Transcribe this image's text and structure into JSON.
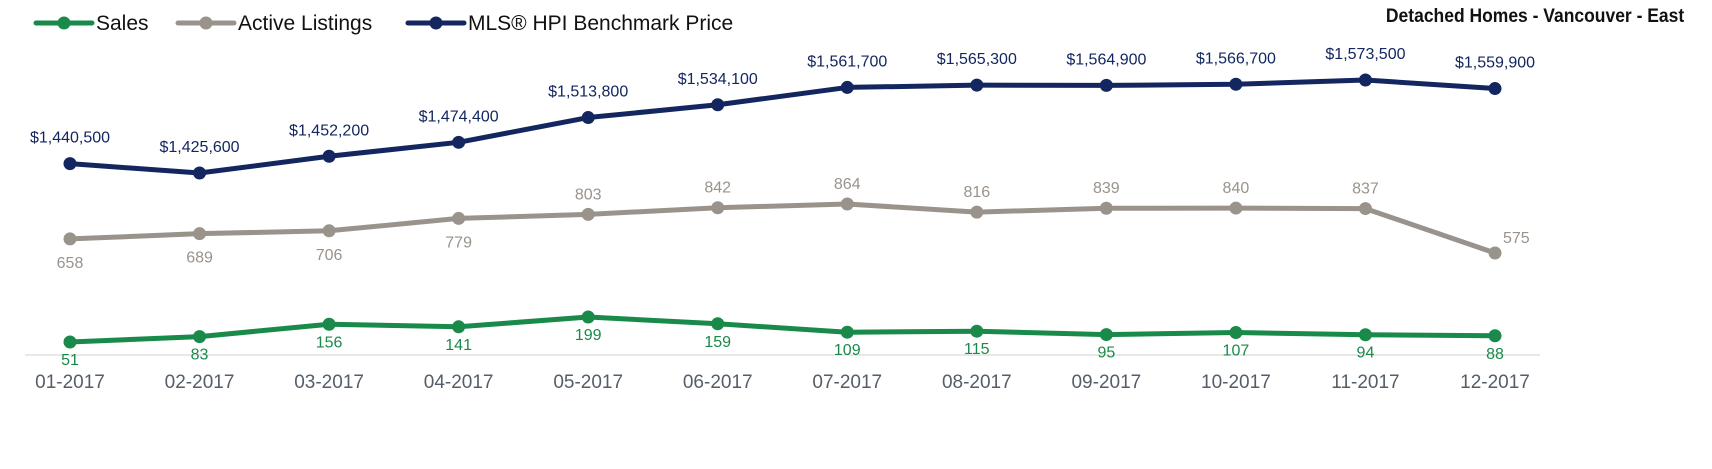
{
  "chart_data": {
    "type": "line",
    "title": "Detached Homes - Vancouver - East",
    "categories": [
      "01-2017",
      "02-2017",
      "03-2017",
      "04-2017",
      "05-2017",
      "06-2017",
      "07-2017",
      "08-2017",
      "09-2017",
      "10-2017",
      "11-2017",
      "12-2017"
    ],
    "legend_position": "top-left",
    "grid": false,
    "series": [
      {
        "name": "Sales",
        "color": "#1a8a4a",
        "values": [
          51,
          83,
          156,
          141,
          199,
          159,
          109,
          115,
          95,
          107,
          94,
          88
        ],
        "labels": [
          "51",
          "83",
          "156",
          "141",
          "199",
          "159",
          "109",
          "115",
          "95",
          "107",
          "94",
          "88"
        ]
      },
      {
        "name": "Active Listings",
        "color": "#9a938b",
        "values": [
          658,
          689,
          706,
          779,
          803,
          842,
          864,
          816,
          839,
          840,
          837,
          575
        ],
        "labels": [
          "658",
          "689",
          "706",
          "779",
          "803",
          "842",
          "864",
          "816",
          "839",
          "840",
          "837",
          "575"
        ]
      },
      {
        "name": "MLS® HPI Benchmark Price",
        "color": "#132660",
        "values": [
          1440500,
          1425600,
          1452200,
          1474400,
          1513800,
          1534100,
          1561700,
          1565300,
          1564900,
          1566700,
          1573500,
          1559900
        ],
        "labels": [
          "$1,440,500",
          "$1,425,600",
          "$1,452,200",
          "$1,474,400",
          "$1,513,800",
          "$1,534,100",
          "$1,561,700",
          "$1,565,300",
          "$1,564,900",
          "$1,566,700",
          "$1,573,500",
          "$1,559,900"
        ]
      }
    ]
  }
}
